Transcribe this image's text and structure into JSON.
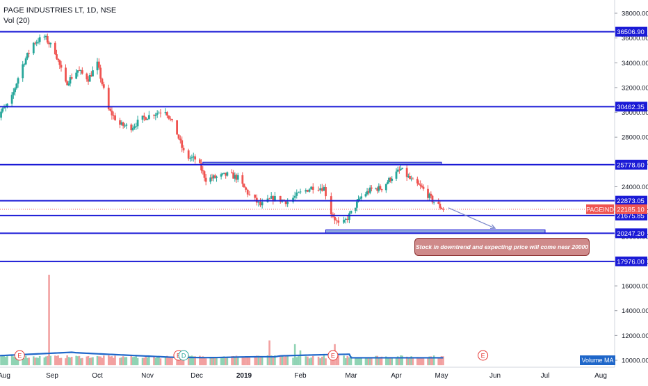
{
  "legend": {
    "symbol_line": "PAGE INDUSTRIES LT, 1D, NSE",
    "volume_line": "Vol (20)"
  },
  "annotation": {
    "text": "Stock in downtrend and expecting price will come near 20000"
  },
  "price_tag": {
    "symbol": "PAGEIND",
    "value": "22185.10",
    "color": "#ef5350"
  },
  "volume_ma_label": "Volume MA",
  "colors": {
    "up": "#26a69a",
    "down": "#ef5350",
    "level_line": "#1a1ad6",
    "zone_fill": "#8fa8df",
    "volume_ma": "#1e66c9",
    "earnings": "#e53935",
    "dividend": "#26a69a"
  },
  "chart_data": {
    "type": "candlestick",
    "price_axis": {
      "ticks": [
        10000,
        12000,
        14000,
        16000,
        18000,
        20000,
        22000,
        24000,
        26000,
        28000,
        30000,
        32000,
        34000,
        36000,
        38000
      ],
      "tick_labels": [
        "10000.00",
        "12000.00",
        "14000.00",
        "16000.00",
        "18000.00",
        "20000.00",
        "22000.00",
        "24000.00",
        "26000.00",
        "28000.00",
        "30000.00",
        "32000.00",
        "34000.00",
        "36000.00",
        "38000.00"
      ],
      "range": [
        9400,
        39000
      ]
    },
    "time_axis": {
      "labels": [
        "Aug",
        "Sep",
        "Oct",
        "Nov",
        "Dec",
        "2019",
        "Feb",
        "Mar",
        "Apr",
        "May",
        "Jun",
        "Jul",
        "Aug"
      ],
      "bold": [
        "2019"
      ]
    },
    "horizontal_levels": [
      {
        "value": 36506.9,
        "label": "36506.90"
      },
      {
        "value": 30462.35,
        "label": "30462.35"
      },
      {
        "value": 25778.6,
        "label": "25778.60"
      },
      {
        "value": 22873.05,
        "label": "22873.05"
      },
      {
        "value": 21675.85,
        "label": "21675.85"
      },
      {
        "value": 20247.2,
        "label": "20247.20"
      },
      {
        "value": 17976.0,
        "label": "17976.00"
      }
    ],
    "zones": [
      {
        "from": "2018-12-05",
        "to": "2019-05-01",
        "low": 25780,
        "high": 25980
      },
      {
        "from": "2019-02-15",
        "to": "2019-07-01",
        "low": 20247,
        "high": 20520
      }
    ],
    "projection_arrow": {
      "from_date": "2019-05-05",
      "from_price": 22300,
      "to_date": "2019-06-01",
      "to_price": 20650
    },
    "last_price": 22185.1,
    "trend_knots": [
      [
        "2018-07-25",
        29400
      ],
      [
        "2018-08-05",
        30800
      ],
      [
        "2018-08-12",
        33600
      ],
      [
        "2018-08-20",
        35600
      ],
      [
        "2018-08-27",
        36100
      ],
      [
        "2018-09-03",
        34900
      ],
      [
        "2018-09-10",
        32300
      ],
      [
        "2018-09-18",
        33400
      ],
      [
        "2018-09-25",
        32700
      ],
      [
        "2018-10-01",
        33900
      ],
      [
        "2018-10-08",
        30200
      ],
      [
        "2018-10-15",
        29000
      ],
      [
        "2018-10-22",
        28800
      ],
      [
        "2018-10-29",
        29500
      ],
      [
        "2018-11-05",
        29900
      ],
      [
        "2018-11-12",
        30200
      ],
      [
        "2018-11-19",
        28300
      ],
      [
        "2018-11-24",
        26400
      ],
      [
        "2018-12-01",
        26200
      ],
      [
        "2018-12-07",
        24600
      ],
      [
        "2018-12-15",
        24800
      ],
      [
        "2018-12-22",
        25000
      ],
      [
        "2018-12-28",
        24700
      ],
      [
        "2019-01-04",
        23300
      ],
      [
        "2019-01-10",
        22500
      ],
      [
        "2019-01-17",
        23100
      ],
      [
        "2019-01-25",
        22800
      ],
      [
        "2019-02-01",
        23500
      ],
      [
        "2019-02-08",
        24000
      ],
      [
        "2019-02-14",
        23900
      ],
      [
        "2019-02-18",
        21900
      ],
      [
        "2019-02-23",
        20700
      ],
      [
        "2019-03-01",
        21900
      ],
      [
        "2019-03-08",
        23200
      ],
      [
        "2019-03-15",
        23800
      ],
      [
        "2019-03-22",
        23900
      ],
      [
        "2019-03-29",
        24800
      ],
      [
        "2019-04-04",
        25400
      ],
      [
        "2019-04-11",
        24500
      ],
      [
        "2019-04-18",
        23900
      ],
      [
        "2019-04-25",
        22900
      ],
      [
        "2019-05-02",
        22185
      ]
    ],
    "volume_axis": {
      "range": [
        9400,
        39000
      ]
    },
    "volume_spikes": [
      {
        "date": "2018-08-30",
        "value": 16900
      },
      {
        "date": "2019-01-15",
        "value": 11600
      },
      {
        "date": "2019-01-29",
        "value": 11300
      },
      {
        "date": "2019-02-20",
        "value": 11300
      },
      {
        "date": "2019-01-20",
        "value": 10900
      },
      {
        "date": "2019-02-01",
        "value": 10800
      }
    ],
    "events": [
      {
        "date": "2018-08-11",
        "type": "E"
      },
      {
        "date": "2018-11-20",
        "type": "E"
      },
      {
        "date": "2018-11-23",
        "type": "D"
      },
      {
        "date": "2019-02-19",
        "type": "E"
      },
      {
        "date": "2019-05-25",
        "type": "E"
      }
    ]
  }
}
